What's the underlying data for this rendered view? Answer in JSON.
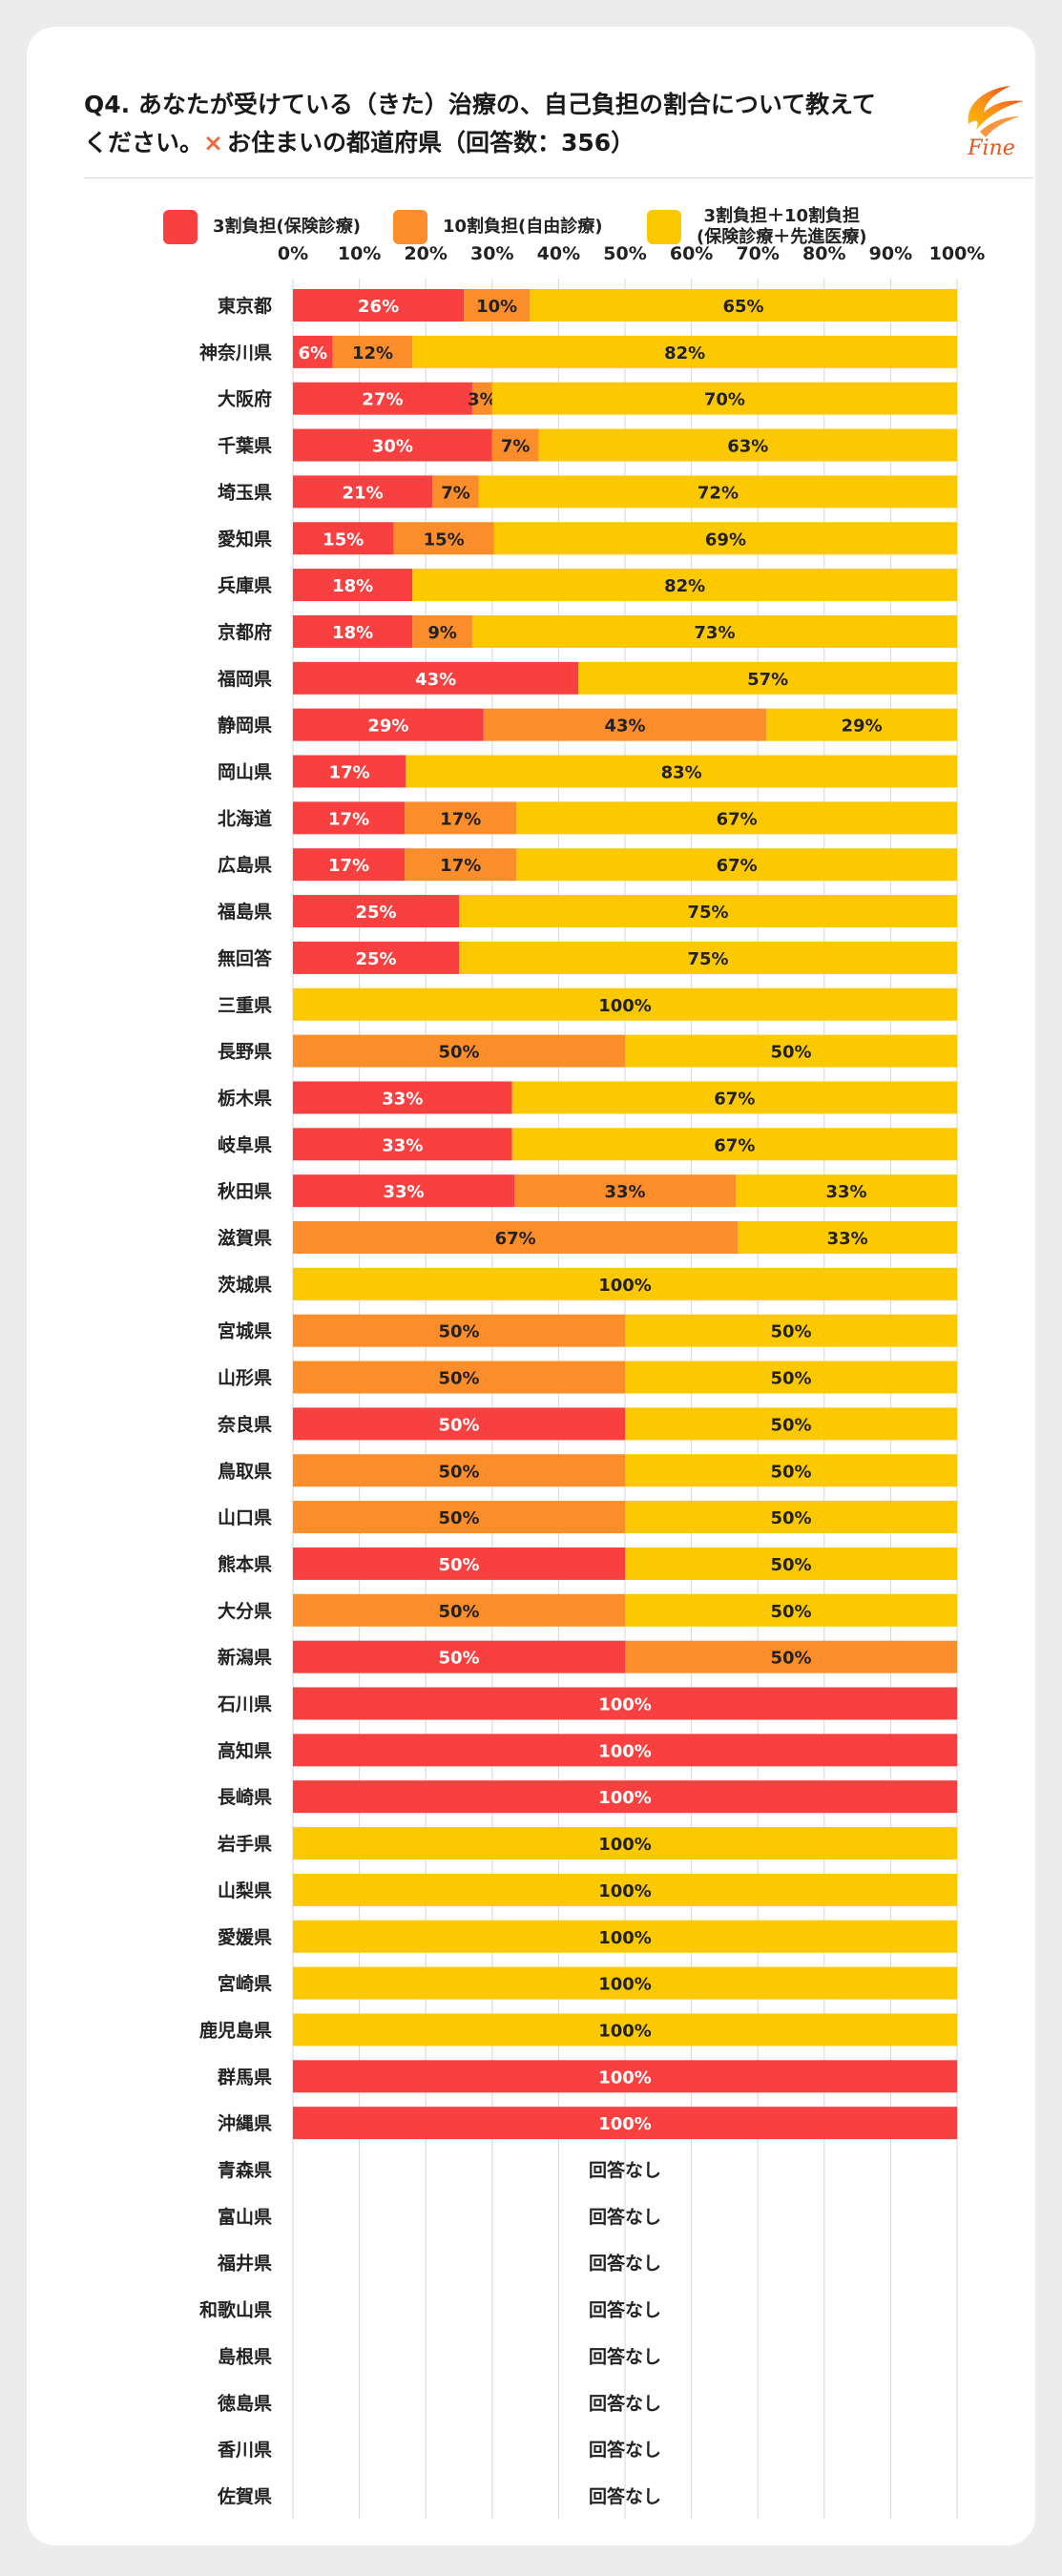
{
  "title": {
    "line1": "Q4. あなたが受けている（きた）治療の、自己負担の割合について教えて",
    "line2_prefix": "ください。",
    "line2_mark": "×",
    "line2_rest": "お住まいの都道府県（回答数：356）"
  },
  "logo": {
    "text": "Fine",
    "icon": "flame-swirl-logo"
  },
  "colors": {
    "s1": "#f94040",
    "s2": "#fc8d2b",
    "s3": "#fcc900",
    "grid": "#d6d6d6",
    "label_light": "#ffffff",
    "label_dark": "#222222"
  },
  "chart_data": {
    "type": "bar",
    "orientation": "horizontal",
    "stacked": true,
    "title": "Q4. あなたが受けている（きた）治療の、自己負担の割合について教えてください。× お住まいの都道府県（回答数：356）",
    "xlabel": "",
    "ylabel": "",
    "xlim": [
      0,
      100
    ],
    "xticks": [
      "0%",
      "10%",
      "20%",
      "30%",
      "40%",
      "50%",
      "60%",
      "70%",
      "80%",
      "90%",
      "100%"
    ],
    "grid": true,
    "legend_position": "top",
    "unit": "%",
    "no_answer_label": "回答なし",
    "series": [
      {
        "name": "3割負担(保険診療)",
        "color": "#f94040"
      },
      {
        "name": "10割負担(自由診療)",
        "color": "#fc8d2b"
      },
      {
        "name": "3割負担＋10割負担\n(保険診療＋先進医療)",
        "color": "#fcc900"
      }
    ],
    "categories": [
      "東京都",
      "神奈川県",
      "大阪府",
      "千葉県",
      "埼玉県",
      "愛知県",
      "兵庫県",
      "京都府",
      "福岡県",
      "静岡県",
      "岡山県",
      "北海道",
      "広島県",
      "福島県",
      "無回答",
      "三重県",
      "長野県",
      "栃木県",
      "岐阜県",
      "秋田県",
      "滋賀県",
      "茨城県",
      "宮城県",
      "山形県",
      "奈良県",
      "鳥取県",
      "山口県",
      "熊本県",
      "大分県",
      "新潟県",
      "石川県",
      "高知県",
      "長崎県",
      "岩手県",
      "山梨県",
      "愛媛県",
      "宮崎県",
      "鹿児島県",
      "群馬県",
      "沖縄県",
      "青森県",
      "富山県",
      "福井県",
      "和歌山県",
      "島根県",
      "徳島県",
      "香川県",
      "佐賀県"
    ],
    "rows": [
      [
        26,
        10,
        65
      ],
      [
        6,
        12,
        82
      ],
      [
        27,
        3,
        70
      ],
      [
        30,
        7,
        63
      ],
      [
        21,
        7,
        72
      ],
      [
        15,
        15,
        69
      ],
      [
        18,
        0,
        82
      ],
      [
        18,
        9,
        73
      ],
      [
        43,
        0,
        57
      ],
      [
        29,
        43,
        29
      ],
      [
        17,
        0,
        83
      ],
      [
        17,
        17,
        67
      ],
      [
        17,
        17,
        67
      ],
      [
        25,
        0,
        75
      ],
      [
        25,
        0,
        75
      ],
      [
        0,
        0,
        100
      ],
      [
        0,
        50,
        50
      ],
      [
        33,
        0,
        67
      ],
      [
        33,
        0,
        67
      ],
      [
        33,
        33,
        33
      ],
      [
        0,
        67,
        33
      ],
      [
        0,
        0,
        100
      ],
      [
        0,
        50,
        50
      ],
      [
        0,
        50,
        50
      ],
      [
        50,
        0,
        50
      ],
      [
        0,
        50,
        50
      ],
      [
        0,
        50,
        50
      ],
      [
        50,
        0,
        50
      ],
      [
        0,
        50,
        50
      ],
      [
        50,
        50,
        0
      ],
      [
        100,
        0,
        0
      ],
      [
        100,
        0,
        0
      ],
      [
        100,
        0,
        0
      ],
      [
        0,
        0,
        100
      ],
      [
        0,
        0,
        100
      ],
      [
        0,
        0,
        100
      ],
      [
        0,
        0,
        100
      ],
      [
        0,
        0,
        100
      ],
      [
        100,
        0,
        0
      ],
      [
        100,
        0,
        0
      ],
      null,
      null,
      null,
      null,
      null,
      null,
      null,
      null
    ]
  }
}
